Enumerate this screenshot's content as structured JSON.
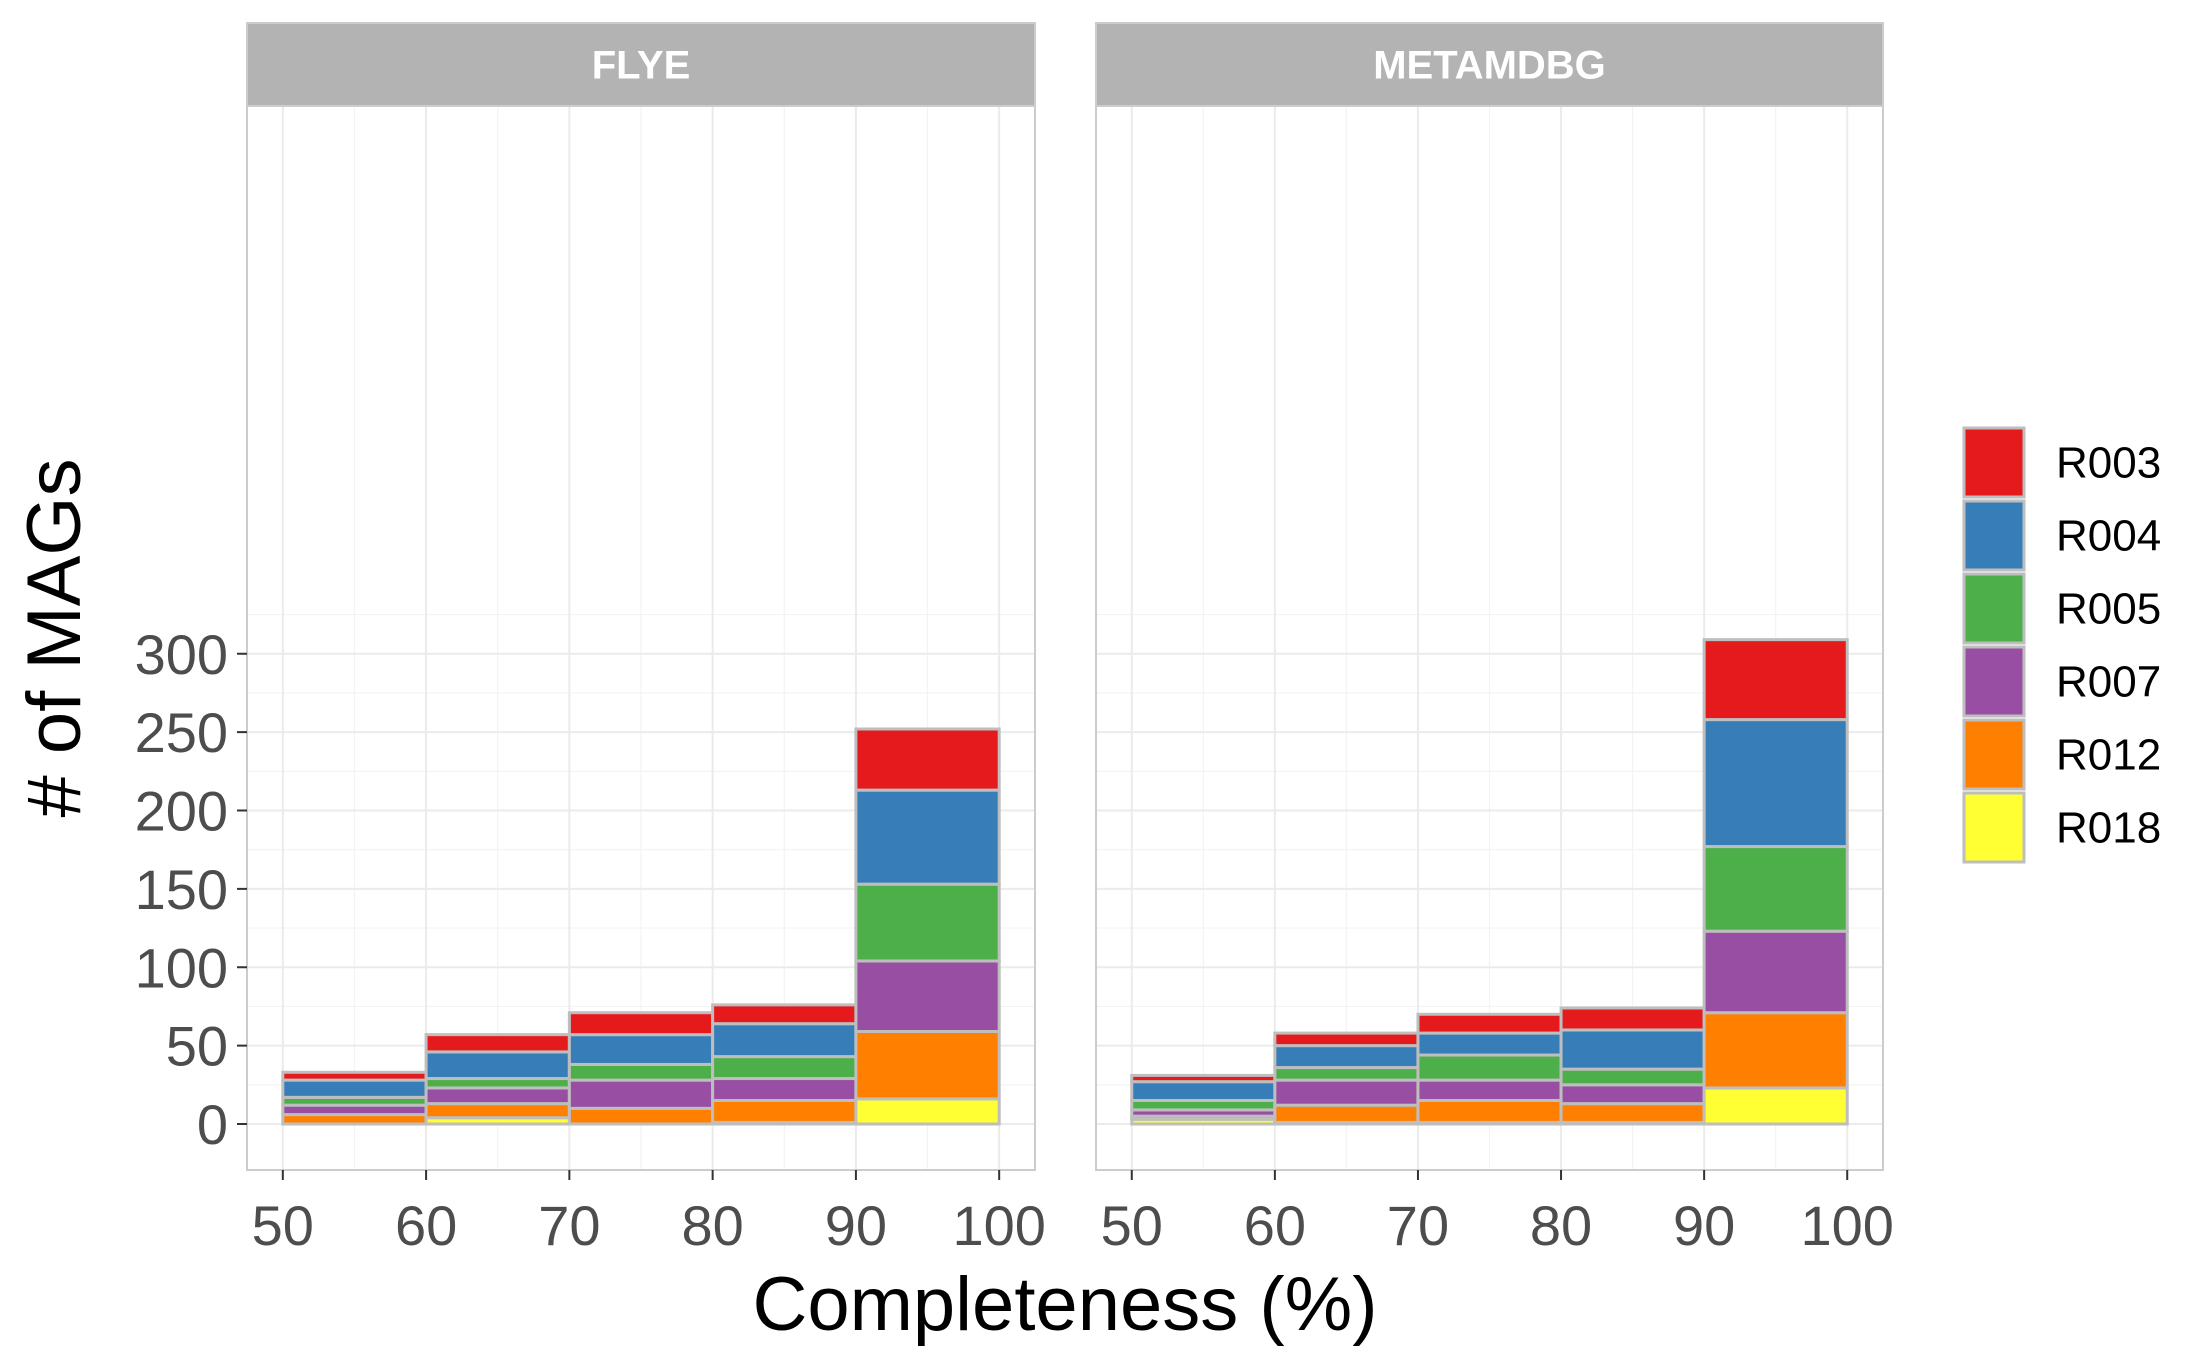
{
  "chart_data": {
    "type": "bar",
    "stacked": true,
    "xlabel": "Completeness (%)",
    "ylabel": "# of MAGs",
    "xlim": [
      50,
      100
    ],
    "ylim": [
      -12,
      325
    ],
    "x_ticks": [
      "50",
      "60",
      "70",
      "80",
      "90",
      "100"
    ],
    "y_ticks": [
      "0",
      "50",
      "100",
      "150",
      "200",
      "250",
      "300"
    ],
    "bins": [
      [
        50,
        60
      ],
      [
        60,
        70
      ],
      [
        70,
        80
      ],
      [
        80,
        90
      ],
      [
        90,
        100
      ]
    ],
    "grid": true,
    "legend_position": "right",
    "legend": [
      "R003",
      "R004",
      "R005",
      "R007",
      "R012",
      "R018"
    ],
    "colors": {
      "R003": "#E41A1C",
      "R004": "#377EB8",
      "R005": "#4DAF4A",
      "R007": "#984EA3",
      "R012": "#FF7F00",
      "R018": "#FFFF33"
    },
    "panels": [
      {
        "title": "FLYE",
        "series": [
          {
            "name": "R018",
            "values": [
              0,
              4,
              0,
              1,
              16
            ]
          },
          {
            "name": "R012",
            "values": [
              6,
              9,
              10,
              14,
              43
            ]
          },
          {
            "name": "R007",
            "values": [
              6,
              10,
              18,
              14,
              45
            ]
          },
          {
            "name": "R005",
            "values": [
              5,
              6,
              10,
              14,
              49
            ]
          },
          {
            "name": "R004",
            "values": [
              11,
              17,
              19,
              21,
              60
            ]
          },
          {
            "name": "R003",
            "values": [
              5,
              11,
              14,
              12,
              39
            ]
          }
        ]
      },
      {
        "title": "METAMDBG",
        "series": [
          {
            "name": "R018",
            "values": [
              3,
              1,
              1,
              1,
              23
            ]
          },
          {
            "name": "R012",
            "values": [
              2,
              11,
              14,
              12,
              48
            ]
          },
          {
            "name": "R007",
            "values": [
              4,
              16,
              13,
              12,
              52
            ]
          },
          {
            "name": "R005",
            "values": [
              6,
              8,
              16,
              10,
              54
            ]
          },
          {
            "name": "R004",
            "values": [
              12,
              14,
              14,
              25,
              81
            ]
          },
          {
            "name": "R003",
            "values": [
              4,
              8,
              12,
              14,
              51
            ]
          }
        ]
      }
    ]
  }
}
